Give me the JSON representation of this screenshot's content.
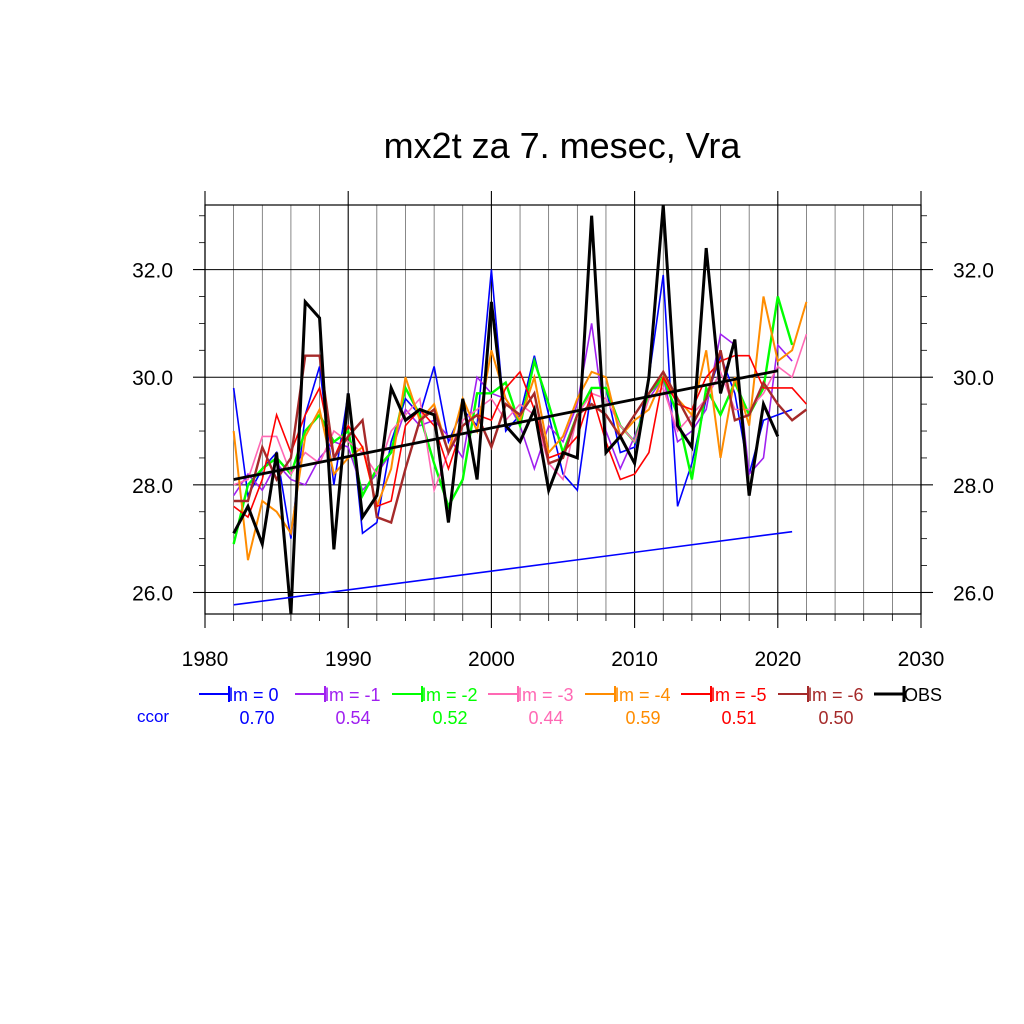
{
  "chart_data": {
    "type": "line",
    "title": "mx2t za 7. mesec, Vra",
    "xlabel": "",
    "ylabel": "",
    "xlim": [
      1980,
      2030
    ],
    "ylim": [
      25.6,
      33.2
    ],
    "x_ticks": [
      1980,
      1990,
      2000,
      2010,
      2020,
      2030
    ],
    "x_tick_labels": [
      "1980",
      "1990",
      "2000",
      "2010",
      "2020",
      "2030"
    ],
    "y_ticks": [
      26,
      28,
      30,
      32
    ],
    "y_tick_labels": [
      "26.0",
      "28.0",
      "30.0",
      "32.0"
    ],
    "grid": true,
    "legend_position": "bottom",
    "ccor_label": "ccor",
    "series": [
      {
        "name": "lm = 0",
        "color": "#0000ff",
        "width": 1.6,
        "ccor": "0.70",
        "x": [
          1982,
          1983,
          1984,
          1985,
          1986,
          1987,
          1988,
          1989,
          1990,
          1991,
          1992,
          1993,
          1994,
          1995,
          1996,
          1997,
          1998,
          1999,
          2000,
          2001,
          2002,
          2003,
          2004,
          2005,
          2006,
          2007,
          2008,
          2009,
          2010,
          2011,
          2012,
          2013,
          2014,
          2015,
          2016,
          2017,
          2018,
          2019,
          2020,
          2021
        ],
        "values": [
          29.8,
          27.8,
          28.3,
          28.6,
          27.0,
          29.3,
          30.2,
          28.0,
          29.7,
          27.1,
          27.3,
          28.8,
          29.6,
          29.3,
          30.2,
          28.8,
          29.4,
          29.1,
          32.0,
          29.0,
          29.3,
          30.4,
          29.3,
          28.2,
          27.9,
          29.8,
          29.8,
          28.6,
          28.7,
          30.0,
          31.9,
          27.6,
          28.4,
          29.6,
          30.4,
          29.7,
          28.2,
          29.2,
          29.3,
          29.4
        ]
      },
      {
        "name": "lm = -1",
        "color": "#a020f0",
        "width": 1.6,
        "ccor": "0.54",
        "x": [
          1982,
          1983,
          1984,
          1985,
          1986,
          1987,
          1988,
          1989,
          1990,
          1991,
          1992,
          1993,
          1994,
          1995,
          1996,
          1997,
          1998,
          1999,
          2000,
          2001,
          2002,
          2003,
          2004,
          2005,
          2006,
          2007,
          2008,
          2009,
          2010,
          2011,
          2012,
          2013,
          2014,
          2015,
          2016,
          2017,
          2018,
          2019,
          2020,
          2021
        ],
        "values": [
          27.8,
          28.2,
          27.9,
          28.4,
          28.1,
          28.0,
          28.5,
          28.8,
          28.7,
          27.9,
          28.2,
          28.6,
          29.4,
          29.1,
          29.2,
          28.9,
          28.5,
          30.0,
          29.7,
          29.6,
          29.1,
          28.3,
          29.1,
          28.8,
          29.5,
          31.0,
          29.0,
          28.3,
          28.9,
          29.6,
          30.0,
          28.8,
          29.0,
          29.4,
          30.8,
          30.6,
          28.2,
          28.5,
          30.6,
          30.3
        ]
      },
      {
        "name": "lm = -2",
        "color": "#00ff00",
        "width": 2.4,
        "ccor": "0.52",
        "x": [
          1982,
          1983,
          1984,
          1985,
          1986,
          1987,
          1988,
          1989,
          1990,
          1991,
          1992,
          1993,
          1994,
          1995,
          1996,
          1997,
          1998,
          1999,
          2000,
          2001,
          2002,
          2003,
          2004,
          2005,
          2006,
          2007,
          2008,
          2009,
          2010,
          2011,
          2012,
          2013,
          2014,
          2015,
          2016,
          2017,
          2018,
          2019,
          2020,
          2021,
          2022
        ],
        "values": [
          26.9,
          28.0,
          28.3,
          28.5,
          28.2,
          29.0,
          29.3,
          28.8,
          29.0,
          27.8,
          28.3,
          28.6,
          29.8,
          29.3,
          28.4,
          27.6,
          28.1,
          29.7,
          29.7,
          29.9,
          29.1,
          30.3,
          29.5,
          28.6,
          29.3,
          29.8,
          29.8,
          29.1,
          28.8,
          29.7,
          30.0,
          29.3,
          28.1,
          29.8,
          29.3,
          29.9,
          29.3,
          29.8,
          31.5,
          30.6,
          null
        ]
      },
      {
        "name": "lm = -3",
        "color": "#ff69b4",
        "width": 1.6,
        "ccor": "0.44",
        "x": [
          1982,
          1983,
          1984,
          1985,
          1986,
          1987,
          1988,
          1989,
          1990,
          1991,
          1992,
          1993,
          1994,
          1995,
          1996,
          1997,
          1998,
          1999,
          2000,
          2001,
          2002,
          2003,
          2004,
          2005,
          2006,
          2007,
          2008,
          2009,
          2010,
          2011,
          2012,
          2013,
          2014,
          2015,
          2016,
          2017,
          2018,
          2019,
          2020,
          2021,
          2022
        ],
        "values": [
          28.0,
          28.1,
          28.9,
          28.9,
          28.2,
          28.6,
          28.4,
          29.0,
          28.8,
          28.6,
          28.2,
          29.0,
          29.3,
          29.6,
          27.9,
          28.6,
          29.2,
          29.4,
          29.6,
          29.2,
          29.5,
          29.3,
          28.4,
          28.1,
          29.3,
          29.7,
          29.6,
          29.1,
          28.8,
          29.6,
          29.8,
          29.0,
          29.3,
          29.6,
          30.1,
          29.4,
          29.4,
          29.7,
          30.2,
          30.0,
          30.8
        ]
      },
      {
        "name": "lm = -4",
        "color": "#ff8c00",
        "width": 2.0,
        "ccor": "0.59",
        "x": [
          1982,
          1983,
          1984,
          1985,
          1986,
          1987,
          1988,
          1989,
          1990,
          1991,
          1992,
          1993,
          1994,
          1995,
          1996,
          1997,
          1998,
          1999,
          2000,
          2001,
          2002,
          2003,
          2004,
          2005,
          2006,
          2007,
          2008,
          2009,
          2010,
          2011,
          2012,
          2013,
          2014,
          2015,
          2016,
          2017,
          2018,
          2019,
          2020,
          2021,
          2022
        ],
        "values": [
          29.0,
          26.6,
          27.7,
          27.5,
          27.1,
          28.9,
          29.4,
          28.2,
          28.5,
          28.7,
          27.6,
          28.3,
          30.0,
          29.2,
          29.5,
          28.6,
          29.6,
          29.0,
          30.5,
          29.6,
          29.2,
          30.0,
          28.6,
          28.9,
          29.6,
          30.1,
          30.0,
          28.9,
          29.2,
          29.4,
          30.0,
          29.6,
          29.3,
          30.5,
          28.5,
          30.0,
          29.1,
          31.5,
          30.3,
          30.5,
          31.4
        ]
      },
      {
        "name": "lm = -5",
        "color": "#ff0000",
        "width": 1.6,
        "ccor": "0.51",
        "x": [
          1982,
          1983,
          1984,
          1985,
          1986,
          1987,
          1988,
          1989,
          1990,
          1991,
          1992,
          1993,
          1994,
          1995,
          1996,
          1997,
          1998,
          1999,
          2000,
          2001,
          2002,
          2003,
          2004,
          2005,
          2006,
          2007,
          2008,
          2009,
          2010,
          2011,
          2012,
          2013,
          2014,
          2015,
          2016,
          2017,
          2018,
          2019,
          2020,
          2021,
          2022
        ],
        "values": [
          27.6,
          27.4,
          28.1,
          29.3,
          28.6,
          29.3,
          29.8,
          28.5,
          29.1,
          28.7,
          27.6,
          27.7,
          29.1,
          29.4,
          29.1,
          28.3,
          29.1,
          29.3,
          29.2,
          29.8,
          30.1,
          29.4,
          28.5,
          28.6,
          28.9,
          29.7,
          28.8,
          28.1,
          28.2,
          28.6,
          30.0,
          29.5,
          29.4,
          30.0,
          30.3,
          30.4,
          30.4,
          29.8,
          29.8,
          29.8,
          29.5
        ]
      },
      {
        "name": "lm = -6",
        "color": "#a52a2a",
        "width": 2.4,
        "ccor": "0.50",
        "x": [
          1982,
          1983,
          1984,
          1985,
          1986,
          1987,
          1988,
          1989,
          1990,
          1991,
          1992,
          1993,
          1994,
          1995,
          1996,
          1997,
          1998,
          1999,
          2000,
          2001,
          2002,
          2003,
          2004,
          2005,
          2006,
          2007,
          2008,
          2009,
          2010,
          2011,
          2012,
          2013,
          2014,
          2015,
          2016,
          2017,
          2018,
          2019,
          2020,
          2021,
          2022
        ],
        "values": [
          27.7,
          27.7,
          28.7,
          28.1,
          28.5,
          30.4,
          30.4,
          28.5,
          28.9,
          29.2,
          27.4,
          27.3,
          28.3,
          29.2,
          29.4,
          28.6,
          29.1,
          29.3,
          28.7,
          29.5,
          29.3,
          29.7,
          28.4,
          28.5,
          29.3,
          29.5,
          29.3,
          28.9,
          29.3,
          29.7,
          30.1,
          29.6,
          29.1,
          29.6,
          30.5,
          29.2,
          29.3,
          29.9,
          29.5,
          29.2,
          29.4
        ]
      },
      {
        "name": "OBS",
        "color": "#000000",
        "width": 3.0,
        "ccor": "",
        "x": [
          1982,
          1983,
          1984,
          1985,
          1986,
          1987,
          1988,
          1989,
          1990,
          1991,
          1992,
          1993,
          1994,
          1995,
          1996,
          1997,
          1998,
          1999,
          2000,
          2001,
          2002,
          2003,
          2004,
          2005,
          2006,
          2007,
          2008,
          2009,
          2010,
          2011,
          2012,
          2013,
          2014,
          2015,
          2016,
          2017,
          2018,
          2019,
          2020
        ],
        "values": [
          27.1,
          27.6,
          26.9,
          28.6,
          25.6,
          31.4,
          31.1,
          26.8,
          29.7,
          27.4,
          27.8,
          29.8,
          29.2,
          29.4,
          29.3,
          27.3,
          29.6,
          28.1,
          31.4,
          29.1,
          28.8,
          29.4,
          27.9,
          28.6,
          28.5,
          33.0,
          28.6,
          28.9,
          28.4,
          30.0,
          33.2,
          29.1,
          28.7,
          32.4,
          29.7,
          30.7,
          27.8,
          29.5,
          28.9
        ]
      }
    ],
    "trend_lines": [
      {
        "color": "#000000",
        "width": 2.8,
        "x": [
          1982,
          2020
        ],
        "values": [
          28.1,
          30.12
        ]
      },
      {
        "color": "#0000ff",
        "width": 1.6,
        "x": [
          1982,
          2021
        ],
        "values": [
          25.77,
          27.13
        ]
      }
    ]
  }
}
